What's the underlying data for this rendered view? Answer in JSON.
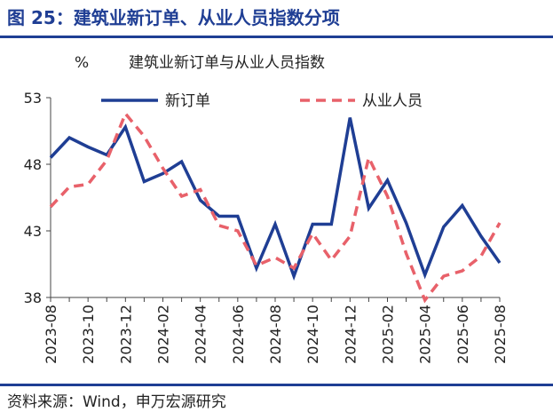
{
  "figure_title": "图 25：建筑业新订单、从业人员指数分项",
  "source": "资料来源：Wind，申万宏源研究",
  "colors": {
    "brand": "#1f3e94",
    "series1": "#1f3e94",
    "series2": "#e8616a"
  },
  "chart_data": {
    "type": "line",
    "title": "建筑业新订单与从业人员指数",
    "ylabel": "%",
    "ylim": [
      38,
      53
    ],
    "yticks": [
      38,
      43,
      48,
      53
    ],
    "grid": false,
    "legend": "top",
    "x": [
      "2023-08",
      "2023-09",
      "2023-10",
      "2023-11",
      "2023-12",
      "2024-01",
      "2024-02",
      "2024-03",
      "2024-04",
      "2024-05",
      "2024-06",
      "2024-07",
      "2024-08",
      "2024-09",
      "2024-10",
      "2024-11",
      "2024-12",
      "2025-01",
      "2025-02",
      "2025-03",
      "2025-04",
      "2025-05",
      "2025-06",
      "2025-07",
      "2025-08"
    ],
    "xticks": [
      "2023-08",
      "2023-10",
      "2023-12",
      "2024-02",
      "2024-04",
      "2024-06",
      "2024-08",
      "2024-10",
      "2024-12",
      "2025-02",
      "2025-04",
      "2025-06",
      "2025-08"
    ],
    "series": [
      {
        "name": "新订单",
        "style": "solid",
        "color": "#1f3e94",
        "values": [
          48.5,
          50.0,
          49.3,
          48.7,
          50.8,
          46.7,
          47.3,
          48.2,
          45.3,
          44.1,
          44.1,
          40.2,
          43.5,
          39.6,
          43.5,
          43.5,
          51.5,
          44.7,
          46.8,
          43.6,
          39.7,
          43.3,
          44.9,
          42.6,
          40.6
        ]
      },
      {
        "name": "从业人员",
        "style": "dashed",
        "color": "#e8616a",
        "values": [
          44.8,
          46.3,
          46.5,
          48.3,
          51.8,
          50.1,
          47.7,
          45.6,
          46.1,
          43.4,
          43.0,
          40.4,
          41.0,
          40.2,
          42.8,
          40.8,
          42.6,
          48.5,
          45.6,
          41.3,
          37.8,
          39.6,
          40.0,
          41.1,
          43.6
        ]
      }
    ]
  }
}
